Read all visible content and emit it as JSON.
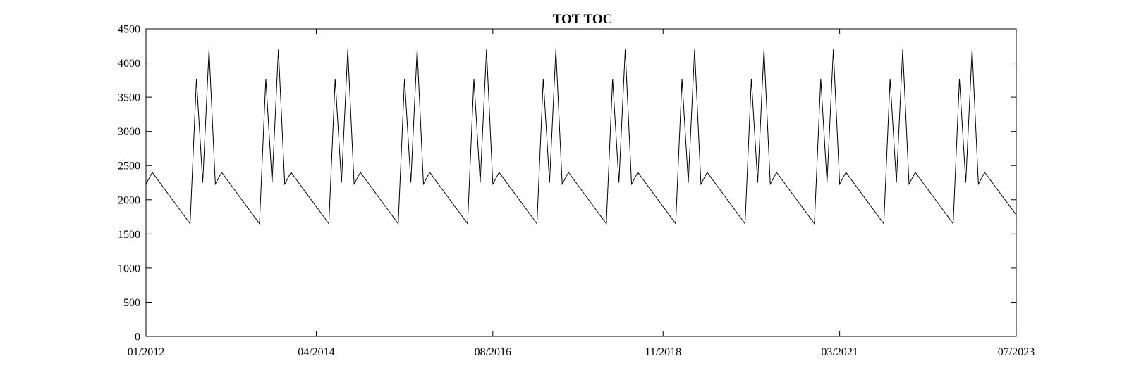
{
  "chart_data": {
    "type": "line",
    "title": "TOT TOC",
    "xlabel": "",
    "ylabel": "",
    "xlim": [
      "2012-01",
      "2023-07"
    ],
    "ylim": [
      0,
      4500
    ],
    "xticks": [
      "01/2012",
      "04/2014",
      "08/2016",
      "11/2018",
      "03/2021",
      "07/2023"
    ],
    "yticks": [
      0,
      500,
      1000,
      1500,
      2000,
      2500,
      3000,
      3500,
      4000,
      4500
    ],
    "grid": false,
    "box": true,
    "line_color": "#000000",
    "series": [
      {
        "points": [
          [
            "2012-01",
            2230
          ],
          [
            "2012-02",
            2400
          ],
          [
            "2012-08",
            1650
          ],
          [
            "2012-09",
            3770
          ],
          [
            "2012-10",
            2250
          ],
          [
            "2012-11",
            4200
          ],
          [
            "2012-12",
            2230
          ],
          [
            "2013-01",
            2400
          ],
          [
            "2013-07",
            1650
          ],
          [
            "2013-08",
            3770
          ],
          [
            "2013-09",
            2250
          ],
          [
            "2013-10",
            4200
          ],
          [
            "2013-11",
            2230
          ],
          [
            "2013-12",
            2400
          ],
          [
            "2014-06",
            1650
          ],
          [
            "2014-07",
            3770
          ],
          [
            "2014-08",
            2250
          ],
          [
            "2014-09",
            4200
          ],
          [
            "2014-10",
            2230
          ],
          [
            "2014-11",
            2400
          ],
          [
            "2015-05",
            1650
          ],
          [
            "2015-06",
            3770
          ],
          [
            "2015-07",
            2250
          ],
          [
            "2015-08",
            4200
          ],
          [
            "2015-09",
            2230
          ],
          [
            "2015-10",
            2400
          ],
          [
            "2016-04",
            1650
          ],
          [
            "2016-05",
            3770
          ],
          [
            "2016-06",
            2250
          ],
          [
            "2016-07",
            4200
          ],
          [
            "2016-08",
            2230
          ],
          [
            "2016-09",
            2400
          ],
          [
            "2017-03",
            1650
          ],
          [
            "2017-04",
            3770
          ],
          [
            "2017-05",
            2250
          ],
          [
            "2017-06",
            4200
          ],
          [
            "2017-07",
            2230
          ],
          [
            "2017-08",
            2400
          ],
          [
            "2018-02",
            1650
          ],
          [
            "2018-03",
            3770
          ],
          [
            "2018-04",
            2250
          ],
          [
            "2018-05",
            4200
          ],
          [
            "2018-06",
            2230
          ],
          [
            "2018-07",
            2400
          ],
          [
            "2019-01",
            1650
          ],
          [
            "2019-02",
            3770
          ],
          [
            "2019-03",
            2250
          ],
          [
            "2019-04",
            4200
          ],
          [
            "2019-05",
            2230
          ],
          [
            "2019-06",
            2400
          ],
          [
            "2019-12",
            1650
          ],
          [
            "2020-01",
            3770
          ],
          [
            "2020-02",
            2250
          ],
          [
            "2020-03",
            4200
          ],
          [
            "2020-04",
            2230
          ],
          [
            "2020-05",
            2400
          ],
          [
            "2020-11",
            1650
          ],
          [
            "2020-12",
            3770
          ],
          [
            "2021-01",
            2250
          ],
          [
            "2021-02",
            4200
          ],
          [
            "2021-03",
            2230
          ],
          [
            "2021-04",
            2400
          ],
          [
            "2021-10",
            1650
          ],
          [
            "2021-11",
            3770
          ],
          [
            "2021-12",
            2250
          ],
          [
            "2022-01",
            4200
          ],
          [
            "2022-02",
            2230
          ],
          [
            "2022-03",
            2400
          ],
          [
            "2022-09",
            1650
          ],
          [
            "2022-10",
            3770
          ],
          [
            "2022-11",
            2250
          ],
          [
            "2022-12",
            4200
          ],
          [
            "2023-01",
            2230
          ],
          [
            "2023-02",
            2400
          ],
          [
            "2023-07",
            1780
          ]
        ]
      }
    ]
  }
}
